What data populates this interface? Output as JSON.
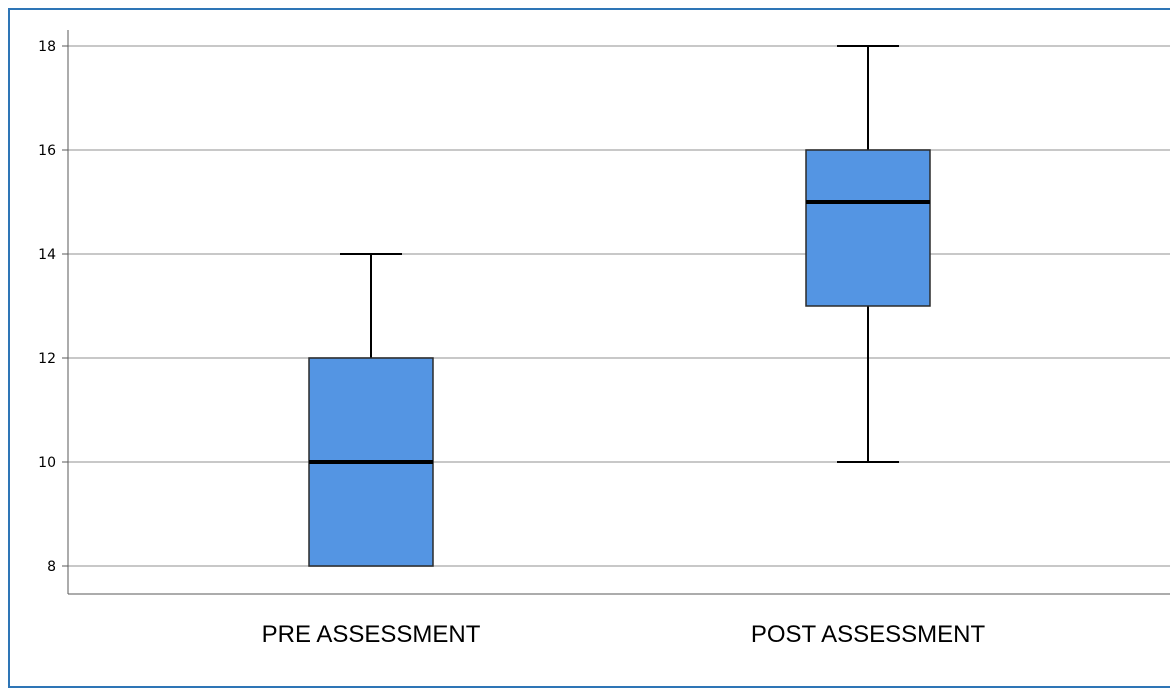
{
  "chart_data": {
    "type": "boxplot",
    "categories": [
      "PRE ASSESSMENT",
      "POST ASSESSMENT"
    ],
    "boxes": [
      {
        "category": "PRE ASSESSMENT",
        "min": 8,
        "q1": 8,
        "median": 10,
        "q3": 12,
        "max": 14
      },
      {
        "category": "POST ASSESSMENT",
        "min": 10,
        "q1": 13,
        "median": 15,
        "q3": 16,
        "max": 18
      }
    ],
    "yticks": [
      8,
      10,
      12,
      14,
      16,
      18
    ],
    "ylim": [
      7.4,
      18.3
    ],
    "grid": true,
    "title": "",
    "xlabel": "",
    "ylabel": ""
  },
  "colors": {
    "box_fill": "#5495e3",
    "box_stroke": "#2b2b2b",
    "gridline": "#c8c8c8",
    "axis": "#5a5a5a",
    "frame": "#2e75b6"
  }
}
